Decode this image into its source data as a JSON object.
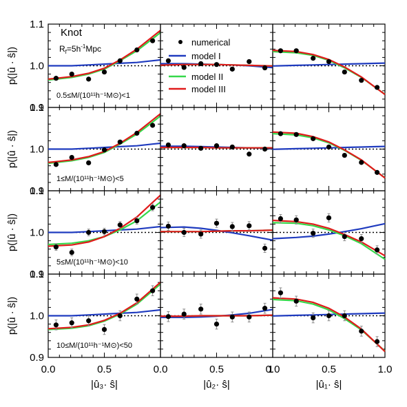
{
  "figure": {
    "title": "Knot",
    "smoothing_label": "R",
    "smoothing_sub": "f",
    "smoothing_value": "=5h",
    "smoothing_exp": "-1",
    "smoothing_unit": "Mpc"
  },
  "legend": {
    "numerical": "numerical",
    "model1": "model I",
    "model2": "model II",
    "model3": "model III"
  },
  "colors": {
    "model1": "#1f3bbf",
    "model2": "#35d84a",
    "model3": "#e01a1a",
    "points": "#000000",
    "errorbars": "#8a8a8a"
  },
  "chart_data": {
    "type": "scatter",
    "layout": "4 rows x 3 columns",
    "ylim": [
      0.9,
      1.1
    ],
    "xlim": [
      0.0,
      1.0
    ],
    "yticks": [
      "0.9",
      "1.0",
      "1.1"
    ],
    "xticks": [
      "0.0",
      "0.5",
      "1.0"
    ],
    "xticks_middle": [
      "0.0",
      "0.5",
      "1"
    ],
    "ylabel": "p(|û · ŝ|)",
    "xlabels": [
      "|û₃· ŝ|",
      "|û₂· ŝ|",
      "|û₁· ŝ|"
    ],
    "x": [
      0.07,
      0.21,
      0.36,
      0.5,
      0.64,
      0.79,
      0.93
    ],
    "rows": [
      {
        "mass_label": "0.5≤M/(10¹¹h⁻¹M⊙)<1",
        "panels": [
          {
            "y": [
              0.97,
              0.98,
              0.968,
              0.985,
              1.012,
              1.038,
              1.06
            ],
            "err": [
              0.003,
              0.003,
              0.003,
              0.003,
              0.003,
              0.003,
              0.003
            ],
            "model1": [
              1.0,
              1.0,
              1.002,
              1.004,
              1.006,
              1.008,
              1.012
            ],
            "model2": [
              0.968,
              0.972,
              0.98,
              0.992,
              1.012,
              1.036,
              1.065
            ],
            "model3": [
              0.97,
              0.974,
              0.982,
              0.994,
              1.014,
              1.04,
              1.07
            ]
          },
          {
            "y": [
              1.012,
              0.996,
              1.005,
              1.003,
              0.992,
              1.01,
              0.995
            ],
            "err": [
              0.003,
              0.003,
              0.003,
              0.003,
              0.003,
              0.003,
              0.003
            ],
            "model1": [
              1.005,
              1.005,
              1.004,
              1.003,
              1.002,
              1.0,
              0.997
            ],
            "model2": [
              1.002,
              1.003,
              1.003,
              1.003,
              1.002,
              1.001,
              1.0
            ],
            "model3": [
              1.002,
              1.003,
              1.003,
              1.003,
              1.002,
              1.001,
              1.0
            ]
          },
          {
            "y": [
              1.036,
              1.036,
              1.018,
              1.01,
              0.985,
              0.965,
              0.948
            ],
            "err": [
              0.003,
              0.003,
              0.003,
              0.003,
              0.003,
              0.003,
              0.003
            ],
            "model1": [
              1.0,
              1.001,
              1.002,
              1.003,
              1.004,
              1.005,
              1.006
            ],
            "model2": [
              1.033,
              1.031,
              1.025,
              1.013,
              0.995,
              0.972,
              0.945
            ],
            "model3": [
              1.036,
              1.034,
              1.027,
              1.015,
              0.997,
              0.973,
              0.945
            ]
          }
        ]
      },
      {
        "mass_label": "1≤M/(10¹¹h⁻¹M⊙)<5",
        "panels": [
          {
            "y": [
              0.963,
              0.98,
              0.967,
              0.998,
              1.017,
              1.038,
              1.057
            ],
            "err": [
              0.003,
              0.003,
              0.003,
              0.003,
              0.003,
              0.003,
              0.003
            ],
            "model1": [
              1.0,
              1.0,
              1.002,
              1.004,
              1.006,
              1.008,
              1.012
            ],
            "model2": [
              0.968,
              0.972,
              0.98,
              0.992,
              1.012,
              1.036,
              1.065
            ],
            "model3": [
              0.97,
              0.974,
              0.982,
              0.994,
              1.014,
              1.04,
              1.07
            ]
          },
          {
            "y": [
              1.01,
              1.008,
              1.002,
              1.008,
              1.005,
              0.988,
              1.0
            ],
            "err": [
              0.003,
              0.003,
              0.003,
              0.003,
              0.003,
              0.003,
              0.003
            ],
            "model1": [
              1.007,
              1.007,
              1.006,
              1.005,
              1.004,
              1.003,
              1.002
            ],
            "model2": [
              1.004,
              1.004,
              1.004,
              1.003,
              1.003,
              1.003,
              1.003
            ],
            "model3": [
              1.004,
              1.004,
              1.004,
              1.003,
              1.003,
              1.003,
              1.003
            ]
          },
          {
            "y": [
              1.037,
              1.035,
              1.025,
              1.005,
              0.985,
              0.968,
              0.944
            ],
            "err": [
              0.003,
              0.003,
              0.003,
              0.003,
              0.003,
              0.003,
              0.003
            ],
            "model1": [
              1.0,
              1.001,
              1.002,
              1.003,
              1.004,
              1.005,
              1.006
            ],
            "model2": [
              1.036,
              1.034,
              1.027,
              1.015,
              0.997,
              0.973,
              0.945
            ],
            "model3": [
              1.04,
              1.038,
              1.03,
              1.017,
              0.998,
              0.974,
              0.945
            ]
          }
        ]
      },
      {
        "mass_label": "5≤M/(10¹¹h⁻¹M⊙)<10",
        "panels": [
          {
            "y": [
              0.965,
              0.952,
              1.0,
              1.002,
              1.018,
              1.028,
              1.06
            ],
            "err": [
              0.008,
              0.008,
              0.008,
              0.008,
              0.008,
              0.008,
              0.008
            ],
            "model1": [
              1.0,
              1.0,
              1.002,
              1.004,
              1.006,
              1.008,
              1.012
            ],
            "model2": [
              0.972,
              0.974,
              0.98,
              0.99,
              1.006,
              1.028,
              1.058
            ],
            "model3": [
              0.968,
              0.97,
              0.977,
              0.99,
              1.01,
              1.037,
              1.072
            ]
          },
          {
            "y": [
              1.015,
              1.0,
              0.996,
              1.022,
              1.014,
              1.016,
              0.962
            ],
            "err": [
              0.01,
              0.01,
              0.01,
              0.01,
              0.01,
              0.01,
              0.01
            ],
            "model1": [
              1.012,
              1.013,
              1.01,
              1.005,
              0.999,
              0.992,
              0.985
            ],
            "model2": [
              1.002,
              1.002,
              1.002,
              1.003,
              1.004,
              1.004,
              1.005
            ],
            "model3": [
              1.002,
              1.002,
              1.002,
              1.003,
              1.004,
              1.004,
              1.005
            ]
          },
          {
            "y": [
              1.033,
              1.03,
              0.998,
              1.035,
              0.99,
              0.985,
              0.958
            ],
            "err": [
              0.01,
              0.01,
              0.01,
              0.01,
              0.01,
              0.01,
              0.01
            ],
            "model1": [
              0.986,
              0.988,
              0.991,
              0.996,
              1.002,
              1.009,
              1.017
            ],
            "model2": [
              1.023,
              1.022,
              1.016,
              1.006,
              0.992,
              0.973,
              0.948
            ],
            "model3": [
              1.028,
              1.026,
              1.02,
              1.01,
              0.995,
              0.977,
              0.955
            ]
          }
        ]
      },
      {
        "mass_label": "10≤M/(10¹¹h⁻¹M⊙)<50",
        "panels": [
          {
            "y": [
              0.978,
              0.983,
              0.988,
              0.967,
              1.0,
              1.04,
              1.06
            ],
            "err": [
              0.012,
              0.012,
              0.012,
              0.012,
              0.012,
              0.012,
              0.012
            ],
            "model1": [
              1.0,
              1.0,
              1.002,
              1.004,
              1.006,
              1.008,
              1.012
            ],
            "model2": [
              0.968,
              0.97,
              0.976,
              0.987,
              1.004,
              1.028,
              1.06
            ],
            "model3": [
              0.97,
              0.972,
              0.978,
              0.989,
              1.006,
              1.031,
              1.064
            ]
          },
          {
            "y": [
              0.998,
              1.004,
              1.016,
              0.98,
              0.997,
              0.997,
              1.018
            ],
            "err": [
              0.012,
              0.012,
              0.012,
              0.012,
              0.012,
              0.012,
              0.012
            ],
            "model1": [
              0.996,
              0.996,
              0.997,
              0.999,
              1.002,
              1.006,
              1.012
            ],
            "model2": [
              0.999,
              0.999,
              1.0,
              1.0,
              1.0,
              1.0,
              1.001
            ],
            "model3": [
              0.999,
              0.999,
              1.0,
              1.0,
              1.0,
              1.0,
              1.001
            ]
          },
          {
            "y": [
              1.055,
              1.035,
              0.995,
              1.0,
              1.0,
              0.963,
              0.938
            ],
            "err": [
              0.012,
              0.012,
              0.012,
              0.012,
              0.012,
              0.012,
              0.012
            ],
            "model1": [
              1.0,
              1.001,
              1.002,
              1.003,
              1.004,
              1.005,
              1.006
            ],
            "model2": [
              1.038,
              1.036,
              1.028,
              1.014,
              0.993,
              0.966,
              0.932
            ],
            "model3": [
              1.042,
              1.04,
              1.032,
              1.018,
              0.997,
              0.968,
              0.932
            ]
          }
        ]
      }
    ]
  }
}
